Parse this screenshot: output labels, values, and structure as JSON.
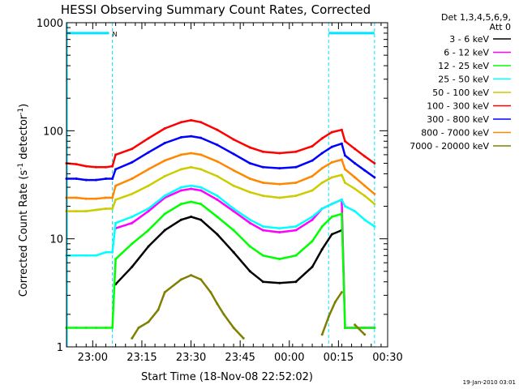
{
  "chart_data": {
    "type": "line",
    "title": "HESSI Observing Summary Count Rates, Corrected",
    "xlabel": "Start Time (18-Nov-08 22:52:02)",
    "ylabel_main": "Corrected Count Rate (s",
    "ylabel_sup1": "-1",
    "ylabel_mid": " detector",
    "ylabel_sup2": "-1",
    "ylabel_end": ")",
    "yscale": "log",
    "ylim": [
      1,
      1000
    ],
    "xlim_minutes": [
      0,
      98
    ],
    "x_ticks": [
      {
        "label": "23:00",
        "minute": 8
      },
      {
        "label": "23:15",
        "minute": 23
      },
      {
        "label": "23:30",
        "minute": 38
      },
      {
        "label": "23:45",
        "minute": 53
      },
      {
        "label": "00:00",
        "minute": 68
      },
      {
        "label": "00:15",
        "minute": 83
      },
      {
        "label": "00:30",
        "minute": 98
      }
    ],
    "y_ticks": [
      {
        "label": "1",
        "value": 1
      },
      {
        "label": "10",
        "value": 10
      },
      {
        "label": "100",
        "value": 100
      },
      {
        "label": "1000",
        "value": 1000
      }
    ],
    "legend_header": [
      "Det 1,3,4,5,6,9,",
      "Att 0"
    ],
    "legend_position": "right",
    "series": [
      {
        "name": "3 - 6 keV",
        "color": "#000000",
        "x": [
          0,
          14,
          15,
          20,
          25,
          30,
          35,
          38,
          41,
          46,
          51,
          56,
          60,
          65,
          70,
          75,
          78,
          81,
          84,
          85,
          88,
          91,
          94
        ],
        "y": [
          null,
          null,
          3.8,
          5.5,
          8.5,
          12,
          15,
          16,
          15,
          11,
          7.5,
          5,
          4,
          3.9,
          4,
          5.5,
          8,
          11,
          12,
          null,
          null,
          null,
          null
        ]
      },
      {
        "name": "6 - 12 keV",
        "color": "#ff00ff",
        "x": [
          0,
          14,
          15,
          20,
          25,
          30,
          35,
          38,
          41,
          46,
          51,
          56,
          60,
          65,
          70,
          75,
          78,
          81,
          84,
          85,
          88,
          91,
          94
        ],
        "y": [
          null,
          null,
          12.5,
          14,
          18,
          24,
          28,
          29,
          28,
          23,
          18,
          14,
          12,
          11.5,
          12,
          15,
          19,
          21,
          23,
          1.5,
          1.5,
          1.5,
          1.5
        ]
      },
      {
        "name": "12 - 25 keV",
        "color": "#00ff00",
        "x": [
          0,
          3,
          6,
          9,
          12,
          14,
          15,
          20,
          25,
          30,
          35,
          38,
          41,
          46,
          51,
          56,
          60,
          65,
          70,
          75,
          78,
          81,
          84,
          85,
          88,
          91,
          94
        ],
        "y": [
          1.5,
          1.5,
          1.5,
          1.5,
          1.5,
          1.5,
          6.5,
          9,
          12,
          17,
          21,
          22,
          21,
          16,
          12,
          8.5,
          7,
          6.5,
          7,
          9.5,
          13,
          16,
          17,
          1.5,
          1.5,
          1.5,
          1.5
        ]
      },
      {
        "name": "25 - 50 keV",
        "color": "#00ffff",
        "x": [
          0,
          3,
          6,
          9,
          12,
          14,
          15,
          20,
          25,
          30,
          35,
          38,
          41,
          46,
          51,
          56,
          60,
          65,
          70,
          75,
          78,
          81,
          84,
          85,
          88,
          91,
          94
        ],
        "y": [
          7,
          7,
          7,
          7,
          7.5,
          7.5,
          14,
          16,
          19,
          25,
          30,
          31,
          30,
          25,
          19,
          15,
          13,
          12.5,
          13,
          16,
          19,
          21,
          23,
          20,
          18,
          15,
          13
        ]
      },
      {
        "name": "50 - 100 keV",
        "color": "#cccc00",
        "x": [
          0,
          3,
          6,
          9,
          12,
          14,
          15,
          20,
          25,
          30,
          35,
          38,
          41,
          46,
          51,
          56,
          60,
          65,
          70,
          75,
          78,
          81,
          84,
          85,
          88,
          91,
          94
        ],
        "y": [
          18,
          18,
          18,
          18.5,
          19,
          19,
          23,
          26,
          31,
          38,
          44,
          46,
          44,
          38,
          31,
          27,
          25,
          24,
          25,
          28,
          33,
          37,
          39,
          33,
          29,
          25,
          21
        ]
      },
      {
        "name": "100 - 300 keV",
        "color": "#ff0000",
        "x": [
          0,
          3,
          6,
          9,
          12,
          14,
          15,
          20,
          25,
          30,
          35,
          38,
          41,
          46,
          51,
          56,
          60,
          65,
          70,
          75,
          78,
          81,
          84,
          85,
          88,
          91,
          94
        ],
        "y": [
          50,
          49,
          47,
          46,
          46,
          47,
          60,
          68,
          85,
          105,
          120,
          125,
          120,
          102,
          83,
          70,
          64,
          62,
          64,
          72,
          85,
          97,
          102,
          80,
          68,
          58,
          50
        ]
      },
      {
        "name": "300 - 800 keV",
        "color": "#0000ff",
        "x": [
          0,
          3,
          6,
          9,
          12,
          14,
          15,
          20,
          25,
          30,
          35,
          38,
          41,
          46,
          51,
          56,
          60,
          65,
          70,
          75,
          78,
          81,
          84,
          85,
          88,
          91,
          94
        ],
        "y": [
          36,
          36,
          35,
          35,
          36,
          36,
          44,
          51,
          63,
          77,
          87,
          89,
          86,
          74,
          61,
          50,
          46,
          45,
          46,
          53,
          62,
          71,
          76,
          59,
          50,
          43,
          37
        ]
      },
      {
        "name": "800 - 7000 keV",
        "color": "#ff8800",
        "x": [
          0,
          3,
          6,
          9,
          12,
          14,
          15,
          20,
          25,
          30,
          35,
          38,
          41,
          46,
          51,
          56,
          60,
          65,
          70,
          75,
          78,
          81,
          84,
          85,
          88,
          91,
          94
        ],
        "y": [
          24,
          24,
          23.5,
          23.5,
          24,
          24,
          31,
          36,
          44,
          53,
          60,
          62,
          60,
          52,
          43,
          36,
          33,
          32,
          33,
          38,
          45,
          51,
          54,
          44,
          37,
          31,
          26
        ]
      },
      {
        "name": "7000 - 20000 keV",
        "color": "#808000",
        "x": [
          0,
          14,
          15,
          18,
          20,
          22,
          25,
          28,
          30,
          35,
          38,
          41,
          44,
          46,
          48,
          51,
          54,
          56,
          60,
          65,
          70,
          75,
          78,
          80,
          82,
          84,
          85,
          88,
          91,
          94
        ],
        "y": [
          null,
          null,
          null,
          null,
          1.2,
          1.5,
          1.7,
          2.2,
          3.2,
          4.2,
          4.6,
          4.2,
          3.2,
          2.5,
          2,
          1.5,
          1.2,
          null,
          null,
          null,
          null,
          null,
          1.3,
          1.9,
          2.6,
          3.2,
          null,
          1.6,
          1.3,
          null
        ]
      }
    ],
    "observing_bars": [
      {
        "label": "",
        "x_start": 0,
        "x_end": 13,
        "y": 800
      },
      {
        "label": "N",
        "x_start": 13,
        "x_end": 14,
        "y": 800
      },
      {
        "label": "",
        "x_start": 80,
        "x_end": 94,
        "y": 800
      }
    ],
    "vertical_markers_minutes": [
      0,
      14,
      80,
      94
    ],
    "bar_color": "#00e5ff"
  },
  "timestamp": "19-Jan-2010 03:01"
}
